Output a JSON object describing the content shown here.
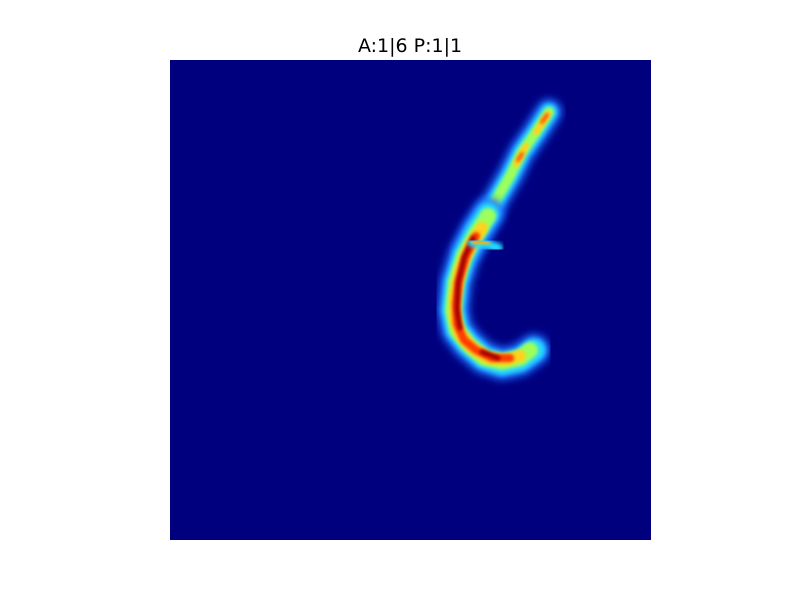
{
  "figure": {
    "title": "A:1|6 P:1|1"
  },
  "heatmap": {
    "colormap": "jet",
    "background_color": "#00007f"
  }
}
